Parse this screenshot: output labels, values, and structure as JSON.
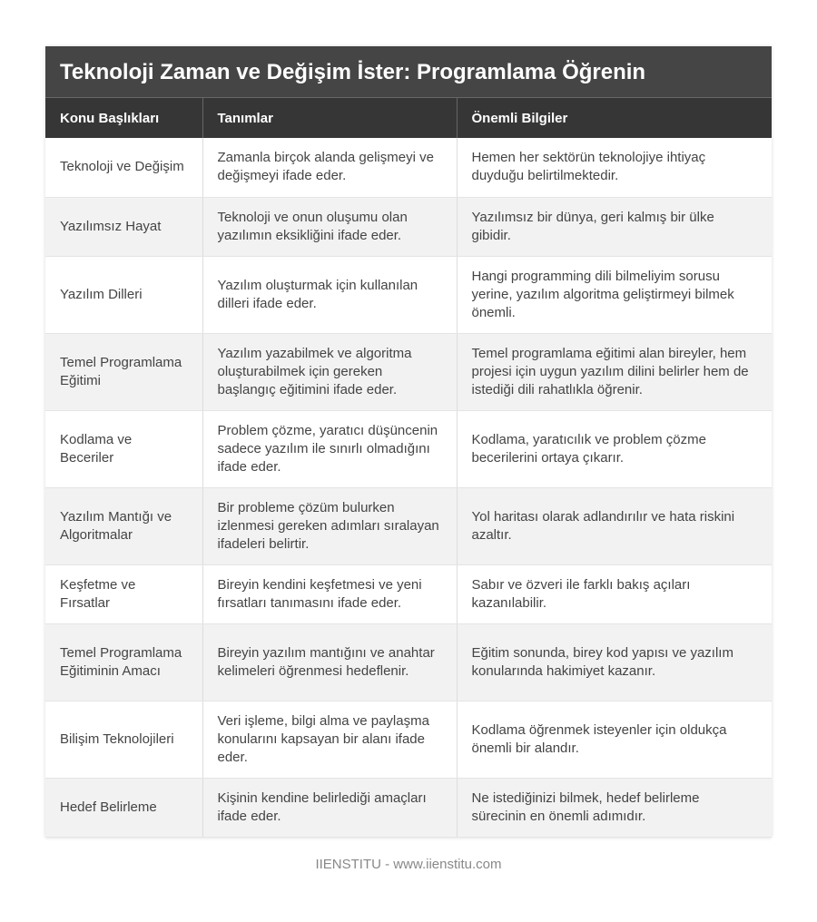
{
  "title": "Teknoloji Zaman ve Değişim İster: Programlama Öğrenin",
  "headers": [
    "Konu Başlıkları",
    "Tanımlar",
    "Önemli Bilgiler"
  ],
  "rows": [
    [
      "Teknoloji ve Değişim",
      "Zamanla birçok alanda gelişmeyi ve değişmeyi ifade eder.",
      "Hemen her sektörün teknolojiye ihtiyaç duyduğu belirtilmektedir."
    ],
    [
      "Yazılımsız Hayat",
      "Teknoloji ve onun oluşumu olan yazılımın eksikliğini ifade eder.",
      "Yazılımsız bir dünya, geri kalmış bir ülke gibidir."
    ],
    [
      "Yazılım Dilleri",
      "Yazılım oluşturmak için kullanılan dilleri ifade eder.",
      "Hangi programming dili bilmeliyim sorusu yerine, yazılım algoritma geliştirmeyi bilmek önemli."
    ],
    [
      "Temel Programlama Eğitimi",
      "Yazılım yazabilmek ve algoritma oluşturabilmek için gereken başlangıç eğitimini ifade eder.",
      "Temel programlama eğitimi alan bireyler, hem projesi için uygun yazılım dilini belirler hem de istediği dili rahatlıkla öğrenir."
    ],
    [
      "Kodlama ve Beceriler",
      "Problem çözme, yaratıcı düşüncenin sadece yazılım ile sınırlı olmadığını ifade eder.",
      "Kodlama, yaratıcılık ve problem çözme becerilerini ortaya çıkarır."
    ],
    [
      "Yazılım Mantığı ve Algoritmalar",
      "Bir probleme çözüm bulurken izlenmesi gereken adımları sıralayan ifadeleri belirtir.",
      "Yol haritası olarak adlandırılır ve hata riskini azaltır."
    ],
    [
      "Keşfetme ve Fırsatlar",
      "Bireyin kendini keşfetmesi ve yeni fırsatları tanımasını ifade eder.",
      "Sabır ve özveri ile farklı bakış açıları kazanılabilir."
    ],
    [
      "Temel Programlama Eğitiminin Amacı",
      "Bireyin yazılım mantığını ve anahtar kelimeleri öğrenmesi hedeflenir.",
      "Eğitim sonunda, birey kod yapısı ve yazılım konularında hakimiyet kazanır."
    ],
    [
      "Bilişim Teknolojileri",
      "Veri işleme, bilgi alma ve paylaşma konularını kapsayan bir alanı ifade eder.",
      "Kodlama öğrenmek isteyenler için oldukça önemli bir alandır."
    ],
    [
      "Hedef Belirleme",
      "Kişinin kendine belirlediği amaçları ifade eder.",
      "Ne istediğinizi bilmek, hedef belirleme sürecinin en önemli adımıdır."
    ]
  ],
  "footer": "IIENSTITU - www.iienstitu.com"
}
